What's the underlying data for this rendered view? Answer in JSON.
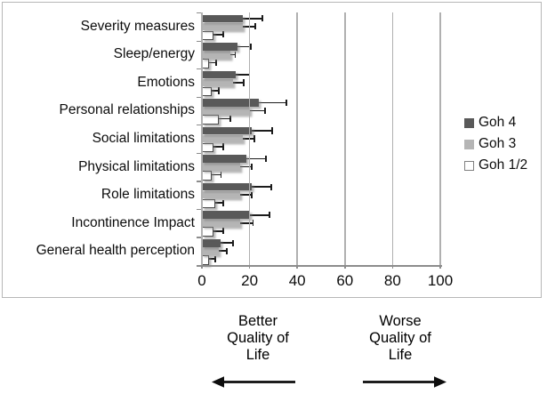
{
  "chart": {
    "panel_border_color": "#b7b7b7",
    "axis_color": "#8c8c8c",
    "gridline_color": "#b0b0b0",
    "error_bar_color": "#1c1c1c",
    "background": "#ffffff"
  },
  "chart_data": {
    "type": "bar",
    "orientation": "horizontal",
    "title": "",
    "xlabel": "",
    "ylabel": "",
    "xlim": [
      0,
      100
    ],
    "xticks": [
      0,
      20,
      40,
      60,
      80,
      100
    ],
    "grid": true,
    "legend_position": "right",
    "error_bars": true,
    "categories": [
      "Severity measures",
      "Sleep/energy",
      "Emotions",
      "Personal relationships",
      "Social limitations",
      "Physical limitations",
      "Role limitations",
      "Incontinence Impact",
      "General health perception"
    ],
    "series": [
      {
        "name": "Goh 4",
        "color": "#595959",
        "border_color": "#595959",
        "values": [
          17,
          15,
          14,
          24,
          21,
          18.5,
          21,
          20,
          8
        ],
        "error_low": [
          8,
          8,
          8,
          11,
          13,
          10,
          13,
          11.5,
          3
        ],
        "error_high": [
          25.5,
          20.5,
          20,
          35.5,
          29.5,
          27,
          29,
          28.5,
          13
        ]
      },
      {
        "name": "Goh 3",
        "color": "#b5b5b5",
        "border_color": "#b5b5b5",
        "values": [
          17,
          12,
          13,
          20,
          17,
          16,
          16,
          16,
          7
        ],
        "error_low": [
          12,
          6.5,
          9,
          12.5,
          11.5,
          12,
          10.5,
          10.5,
          2.5
        ],
        "error_high": [
          22.5,
          14,
          17.5,
          26.5,
          22,
          21,
          21,
          21.5,
          10.5
        ]
      },
      {
        "name": "Goh 1/2",
        "color": "#ffffff",
        "border_color": "#4a4a4a",
        "values": [
          5,
          3,
          4,
          7,
          5,
          4,
          5.5,
          5,
          3
        ],
        "error_low": [
          1,
          0.5,
          1,
          1,
          0.5,
          0.5,
          0.5,
          0,
          0.5
        ],
        "error_high": [
          9,
          6,
          7,
          12,
          9,
          8,
          9,
          9,
          5.5
        ]
      }
    ]
  },
  "annotations": {
    "better": "Better\nQuality of\nLife",
    "worse": "Worse\nQuality of\nLife"
  }
}
